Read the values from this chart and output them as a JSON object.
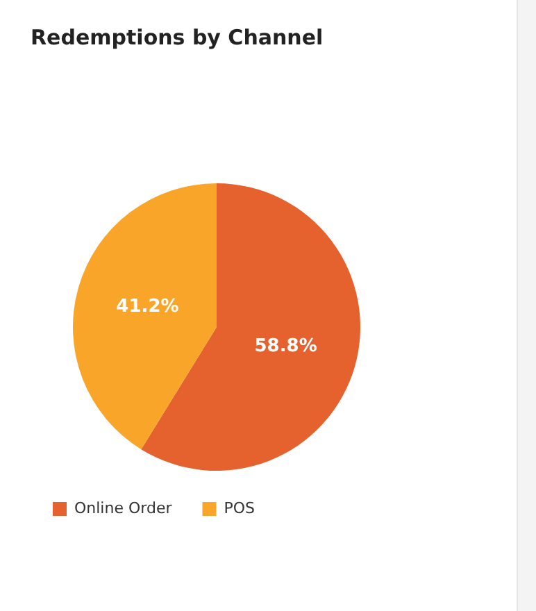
{
  "chart_data": {
    "type": "pie",
    "title": "Redemptions by Channel",
    "categories": [
      "Online Order",
      "POS"
    ],
    "values": [
      58.8,
      41.2
    ],
    "colors": [
      "#e5622f",
      "#f9a52a"
    ],
    "value_labels": [
      "58.8%",
      "41.2%"
    ],
    "legend": "bottom"
  }
}
